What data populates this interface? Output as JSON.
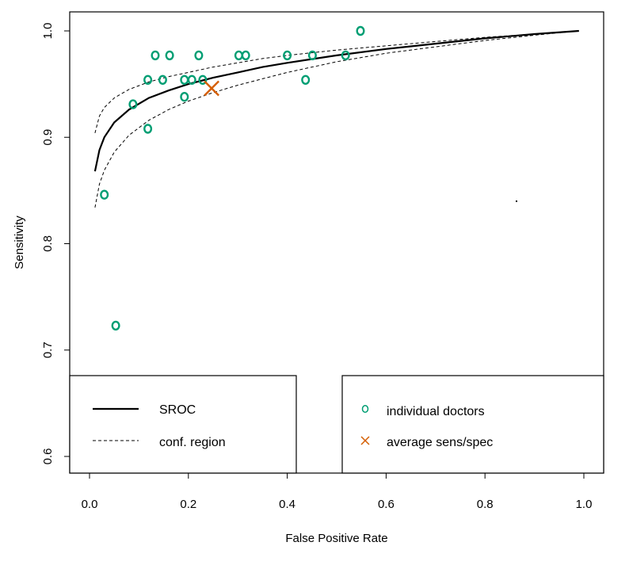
{
  "chart_data": {
    "type": "scatter",
    "xlabel": "False Positive Rate",
    "ylabel": "Sensitivity",
    "xlim": [
      0.0,
      1.0
    ],
    "ylim": [
      0.6,
      1.0
    ],
    "xticks": [
      "0.0",
      "0.2",
      "0.4",
      "0.6",
      "0.8",
      "1.0"
    ],
    "yticks": [
      "0.6",
      "0.7",
      "0.8",
      "0.9",
      "1.0"
    ],
    "series": [
      {
        "name": "individual doctors",
        "marker": "circle",
        "color": "#009E73",
        "points": [
          {
            "x": 0.03,
            "y": 0.846
          },
          {
            "x": 0.053,
            "y": 0.723
          },
          {
            "x": 0.088,
            "y": 0.931
          },
          {
            "x": 0.118,
            "y": 0.908
          },
          {
            "x": 0.118,
            "y": 0.954
          },
          {
            "x": 0.133,
            "y": 0.977
          },
          {
            "x": 0.148,
            "y": 0.954
          },
          {
            "x": 0.162,
            "y": 0.977
          },
          {
            "x": 0.192,
            "y": 0.954
          },
          {
            "x": 0.192,
            "y": 0.938
          },
          {
            "x": 0.207,
            "y": 0.954
          },
          {
            "x": 0.221,
            "y": 0.977
          },
          {
            "x": 0.229,
            "y": 0.954
          },
          {
            "x": 0.302,
            "y": 0.977
          },
          {
            "x": 0.316,
            "y": 0.977
          },
          {
            "x": 0.4,
            "y": 0.977
          },
          {
            "x": 0.437,
            "y": 0.954
          },
          {
            "x": 0.451,
            "y": 0.977
          },
          {
            "x": 0.518,
            "y": 0.977
          },
          {
            "x": 0.548,
            "y": 1.0
          }
        ]
      },
      {
        "name": "average sens/spec",
        "marker": "x",
        "color": "#D55E00",
        "points": [
          {
            "x": 0.247,
            "y": 0.946
          }
        ]
      },
      {
        "name": "SROC",
        "line": "solid",
        "color": "#000000",
        "x": [
          0.011,
          0.02,
          0.03,
          0.05,
          0.08,
          0.12,
          0.16,
          0.2,
          0.25,
          0.3,
          0.35,
          0.4,
          0.5,
          0.6,
          0.7,
          0.8,
          0.9,
          0.99
        ],
        "y": [
          0.868,
          0.888,
          0.9,
          0.914,
          0.926,
          0.937,
          0.944,
          0.95,
          0.956,
          0.961,
          0.966,
          0.97,
          0.977,
          0.983,
          0.988,
          0.993,
          0.997,
          1.0
        ]
      },
      {
        "name": "conf. region upper",
        "line": "dashed",
        "color": "#000000",
        "x": [
          0.011,
          0.02,
          0.03,
          0.05,
          0.08,
          0.12,
          0.16,
          0.2,
          0.25,
          0.3,
          0.35,
          0.4,
          0.5,
          0.6,
          0.7,
          0.8,
          0.9,
          0.99
        ],
        "y": [
          0.904,
          0.92,
          0.928,
          0.937,
          0.945,
          0.952,
          0.957,
          0.961,
          0.966,
          0.97,
          0.974,
          0.977,
          0.982,
          0.986,
          0.99,
          0.994,
          0.997,
          1.0
        ]
      },
      {
        "name": "conf. region lower",
        "line": "dashed",
        "color": "#000000",
        "x": [
          0.011,
          0.02,
          0.03,
          0.05,
          0.08,
          0.12,
          0.16,
          0.2,
          0.25,
          0.3,
          0.35,
          0.4,
          0.5,
          0.6,
          0.7,
          0.8,
          0.9,
          0.99
        ],
        "y": [
          0.834,
          0.856,
          0.869,
          0.886,
          0.902,
          0.916,
          0.926,
          0.934,
          0.942,
          0.949,
          0.955,
          0.961,
          0.971,
          0.979,
          0.985,
          0.991,
          0.996,
          1.0
        ]
      }
    ],
    "legend_left": [
      {
        "label": "SROC",
        "style": "solid"
      },
      {
        "label": "conf. region",
        "style": "dashed"
      }
    ],
    "legend_right": [
      {
        "label": "individual doctors",
        "marker": "circle",
        "color": "#009E73"
      },
      {
        "label": "average sens/spec",
        "marker": "x",
        "color": "#D55E00"
      }
    ],
    "legend_placement": "bottom"
  }
}
